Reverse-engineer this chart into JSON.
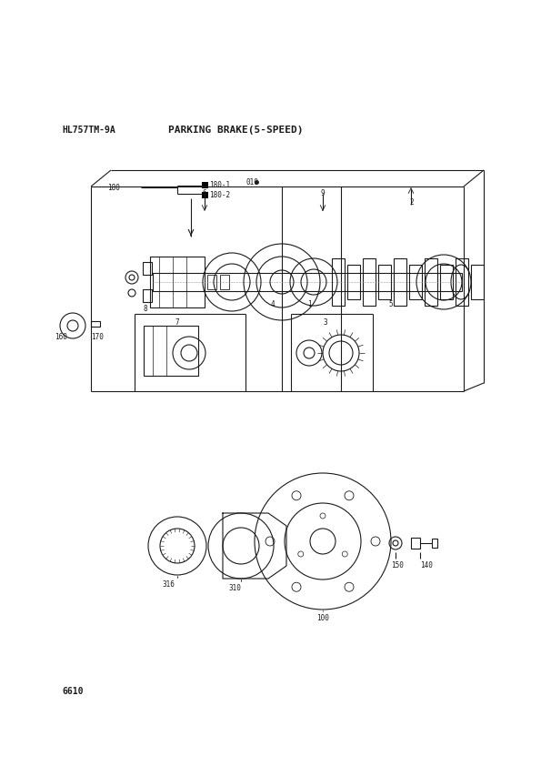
{
  "title": "PARKING BRAKE(5-SPEED)",
  "subtitle": "HL757TM-9A",
  "page_number": "6610",
  "bg_color": "#ffffff",
  "line_color": "#1a1a1a",
  "text_color": "#1a1a1a",
  "fig_width": 5.95,
  "fig_height": 8.42,
  "dpi": 100
}
